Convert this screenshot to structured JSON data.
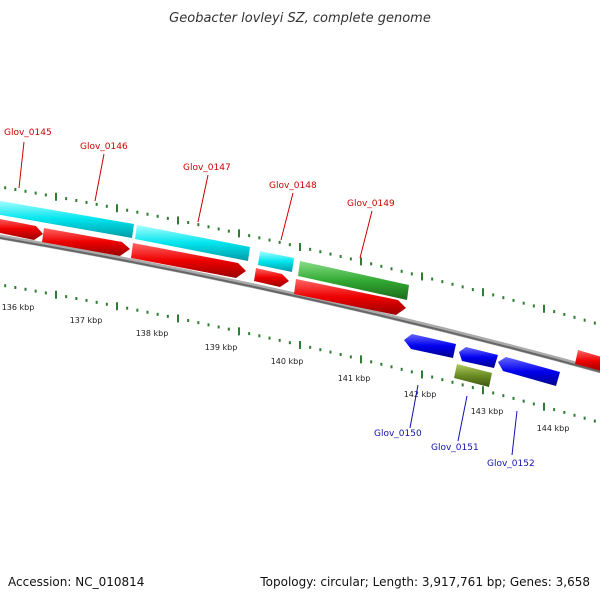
{
  "title": "Geobacter lovleyi SZ, complete genome",
  "footer": {
    "accession": "Accession: NC_010814",
    "summary": "Topology: circular; Length: 3,917,761 bp; Genes: 3,658"
  },
  "scale_labels": [
    "136 kbp",
    "137 kbp",
    "138 kbp",
    "139 kbp",
    "140 kbp",
    "141 kbp",
    "142 kbp",
    "143 kbp",
    "144 kbp"
  ],
  "genes_top": [
    "Glov_0145",
    "Glov_0146",
    "Glov_0147",
    "Glov_0148",
    "Glov_0149"
  ],
  "genes_bottom": [
    "Glov_0150",
    "Glov_0151",
    "Glov_0152"
  ],
  "colors": {
    "cds": "#ff0000",
    "cds_reverse": "#0000ee",
    "feature_cyan": "#00e5ee",
    "feature_green": "#33aa33",
    "feature_olive": "#6b8e23",
    "backbone": "#888888",
    "tick": "#2e7d32",
    "label_top": "#cc0000",
    "label_bottom": "#1111aa"
  }
}
